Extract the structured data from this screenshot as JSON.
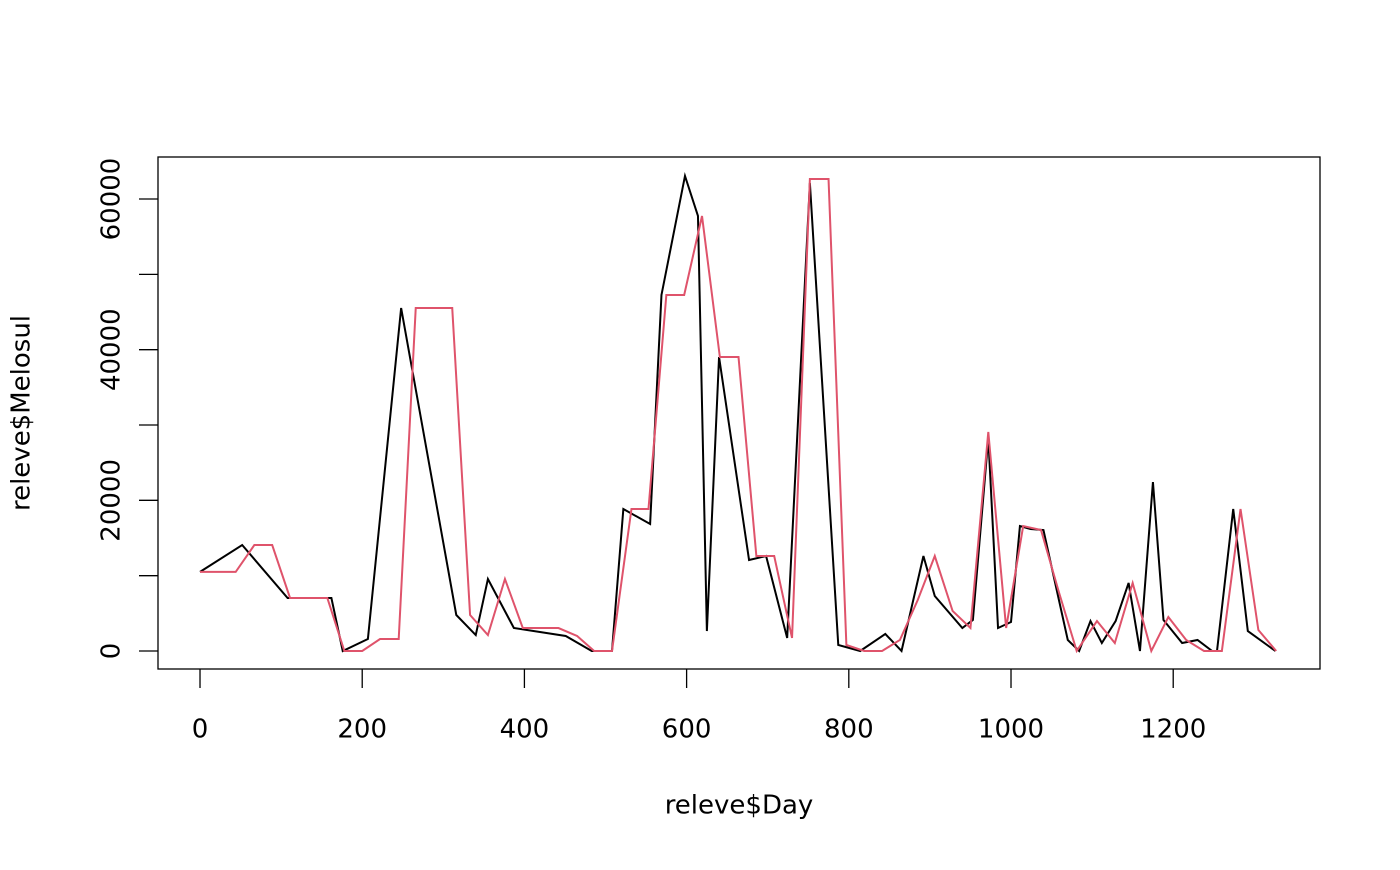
{
  "chart_data": {
    "type": "line",
    "xlabel": "releve$Day",
    "ylabel": "releve$Melosul",
    "xlim": [
      -51.8,
      1381
    ],
    "ylim": [
      -2390,
      65578
    ],
    "xticks": [
      0,
      200,
      400,
      600,
      800,
      1000,
      1200
    ],
    "yticks": [
      0,
      {
        "value": 10000,
        "label": null
      },
      20000,
      {
        "value": 30000,
        "label": null
      },
      40000,
      {
        "value": 50000,
        "label": null
      },
      60000
    ],
    "series": [
      {
        "color": "#000000",
        "x": [
          0,
          52,
          108,
          162,
          176,
          207,
          248,
          316,
          340,
          355,
          387,
          451,
          483,
          508,
          522,
          555,
          569,
          598,
          614,
          625,
          640,
          677,
          698,
          724,
          752,
          787,
          814,
          845,
          865,
          892,
          906,
          940,
          953,
          972,
          984,
          1000,
          1011,
          1024,
          1040,
          1070,
          1084,
          1098,
          1112,
          1129,
          1145,
          1159,
          1175,
          1188,
          1211,
          1230,
          1248,
          1254,
          1274,
          1292,
          1326
        ],
        "values": [
          10500,
          14070,
          7035,
          7035,
          0,
          1590,
          45530,
          4780,
          2120,
          9560,
          3050,
          1990,
          0,
          0,
          18850,
          16860,
          47260,
          63060,
          57750,
          2650,
          39030,
          12080,
          12610,
          1730,
          62130,
          800,
          0,
          2260,
          0,
          12610,
          7300,
          3050,
          4120,
          28280,
          3050,
          3850,
          16590,
          16200,
          16060,
          1460,
          0,
          3980,
          1060,
          3980,
          9030,
          0,
          22430,
          4120,
          1060,
          1460,
          0,
          0,
          18850,
          2650,
          0
        ]
      },
      {
        "color": "#df536b",
        "x": [
          0,
          44,
          67,
          89,
          111,
          157,
          178,
          200,
          222,
          245,
          266,
          311,
          333,
          355,
          376,
          398,
          442,
          465,
          486,
          508,
          532,
          553,
          575,
          597,
          619,
          641,
          664,
          686,
          708,
          730,
          752,
          775,
          797,
          819,
          841,
          863,
          885,
          906,
          928,
          950,
          972,
          994,
          1015,
          1037,
          1059,
          1081,
          1106,
          1128,
          1150,
          1173,
          1194,
          1216,
          1238,
          1260,
          1283,
          1305,
          1327
        ],
        "values": [
          10500,
          10500,
          14070,
          14070,
          7035,
          7035,
          0,
          0,
          1590,
          1590,
          45530,
          45530,
          4780,
          2120,
          9560,
          3050,
          3050,
          1990,
          0,
          0,
          18850,
          18850,
          47260,
          47260,
          57750,
          39030,
          39030,
          12610,
          12610,
          1730,
          62660,
          62660,
          800,
          0,
          0,
          1460,
          6770,
          12610,
          5310,
          3050,
          29070,
          3050,
          16590,
          16060,
          7830,
          0,
          3980,
          1060,
          9030,
          0,
          4510,
          1460,
          0,
          0,
          18850,
          2790,
          0
        ]
      }
    ]
  }
}
